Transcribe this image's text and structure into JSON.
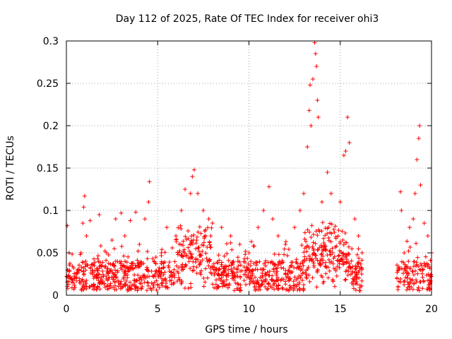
{
  "chart_data": {
    "type": "scatter",
    "title": "Day 112 of 2025, Rate Of TEC Index for receiver ohi3",
    "xlabel": "GPS time / hours",
    "ylabel": "ROTI / TECUs",
    "xlim": [
      0,
      20
    ],
    "ylim": [
      0,
      0.3
    ],
    "xticks": [
      0,
      5,
      10,
      15,
      20
    ],
    "yticks": [
      0,
      0.05,
      0.1,
      0.15,
      0.2,
      0.25,
      0.3
    ],
    "grid": true,
    "marker": "+",
    "color": "#ff0000",
    "series": [
      {
        "name": "ROTI",
        "points": [
          [
            0.05,
            0.082
          ],
          [
            0.15,
            0.05
          ],
          [
            0.3,
            0.02
          ],
          [
            0.6,
            0.03
          ],
          [
            0.8,
            0.05
          ],
          [
            0.9,
            0.085
          ],
          [
            0.95,
            0.104
          ],
          [
            1.0,
            0.117
          ],
          [
            1.1,
            0.07
          ],
          [
            1.3,
            0.088
          ],
          [
            1.5,
            0.02
          ],
          [
            1.8,
            0.095
          ],
          [
            1.9,
            0.035
          ],
          [
            2.2,
            0.05
          ],
          [
            2.5,
            0.065
          ],
          [
            2.7,
            0.09
          ],
          [
            3.0,
            0.097
          ],
          [
            3.2,
            0.07
          ],
          [
            3.5,
            0.088
          ],
          [
            3.8,
            0.098
          ],
          [
            4.0,
            0.06
          ],
          [
            4.3,
            0.09
          ],
          [
            4.5,
            0.11
          ],
          [
            4.55,
            0.134
          ],
          [
            4.8,
            0.04
          ],
          [
            5.2,
            0.05
          ],
          [
            5.5,
            0.08
          ],
          [
            6.0,
            0.07
          ],
          [
            6.3,
            0.1
          ],
          [
            6.5,
            0.125
          ],
          [
            6.8,
            0.12
          ],
          [
            6.9,
            0.14
          ],
          [
            7.0,
            0.148
          ],
          [
            7.2,
            0.12
          ],
          [
            7.5,
            0.1
          ],
          [
            7.8,
            0.09
          ],
          [
            8.0,
            0.085
          ],
          [
            8.5,
            0.08
          ],
          [
            9.0,
            0.07
          ],
          [
            9.5,
            0.06
          ],
          [
            10.0,
            0.05
          ],
          [
            10.5,
            0.08
          ],
          [
            10.8,
            0.1
          ],
          [
            11.1,
            0.128
          ],
          [
            11.3,
            0.09
          ],
          [
            11.6,
            0.07
          ],
          [
            12.0,
            0.06
          ],
          [
            12.5,
            0.08
          ],
          [
            12.8,
            0.1
          ],
          [
            13.0,
            0.12
          ],
          [
            13.2,
            0.175
          ],
          [
            13.3,
            0.218
          ],
          [
            13.35,
            0.248
          ],
          [
            13.4,
            0.2
          ],
          [
            13.5,
            0.255
          ],
          [
            13.6,
            0.298
          ],
          [
            13.65,
            0.285
          ],
          [
            13.7,
            0.27
          ],
          [
            13.75,
            0.23
          ],
          [
            13.8,
            0.21
          ],
          [
            14.0,
            0.11
          ],
          [
            14.3,
            0.145
          ],
          [
            14.5,
            0.12
          ],
          [
            15.0,
            0.11
          ],
          [
            15.2,
            0.165
          ],
          [
            15.3,
            0.17
          ],
          [
            15.4,
            0.21
          ],
          [
            15.5,
            0.18
          ],
          [
            15.8,
            0.09
          ],
          [
            16.0,
            0.07
          ],
          [
            16.2,
            0.05
          ],
          [
            18.3,
            0.122
          ],
          [
            18.35,
            0.1
          ],
          [
            18.5,
            0.05
          ],
          [
            18.8,
            0.08
          ],
          [
            19.0,
            0.09
          ],
          [
            19.1,
            0.12
          ],
          [
            19.2,
            0.16
          ],
          [
            19.3,
            0.185
          ],
          [
            19.35,
            0.2
          ],
          [
            19.4,
            0.13
          ],
          [
            19.6,
            0.085
          ],
          [
            19.8,
            0.07
          ],
          [
            20.0,
            0.05
          ]
        ]
      }
    ],
    "gap_hours": [
      16.2,
      18.1
    ],
    "notes": "Dense band of points between ~0.005 and ~0.06 ROTI throughout 0-16.2 h and 18.1-20 h; listed points are representative peaks."
  }
}
